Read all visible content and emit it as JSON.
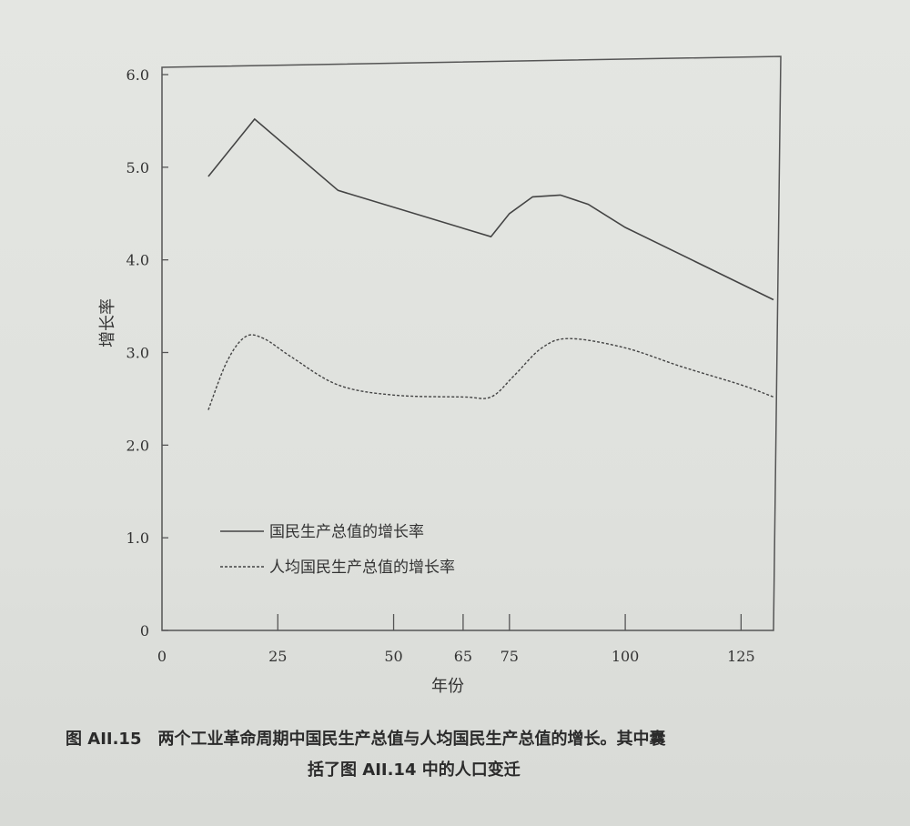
{
  "chart_data": {
    "type": "line",
    "ylabel": "增长率",
    "xlabel": "年份",
    "xlim": [
      0,
      132
    ],
    "ylim": [
      0,
      6.0
    ],
    "x_ticks": [
      0,
      25,
      50,
      65,
      75,
      100,
      125
    ],
    "y_ticks": [
      "0",
      "1.0",
      "2.0",
      "3.0",
      "4.0",
      "5.0",
      "6.0"
    ],
    "legend_position": "lower-left",
    "series": [
      {
        "name": "国民生产总值的增长率",
        "style": "solid",
        "x": [
          10,
          20,
          38,
          71,
          75,
          80,
          86,
          92,
          100,
          132
        ],
        "y": [
          4.9,
          5.52,
          4.75,
          4.25,
          4.5,
          4.68,
          4.7,
          4.6,
          4.35,
          3.57
        ]
      },
      {
        "name": "人均国民生产总值的增长率",
        "style": "dashed",
        "x": [
          10,
          14,
          18,
          22,
          28,
          38,
          50,
          65,
          71,
          76,
          82,
          88,
          100,
          112,
          125,
          132
        ],
        "y": [
          2.38,
          2.9,
          3.17,
          3.15,
          2.95,
          2.65,
          2.54,
          2.52,
          2.52,
          2.75,
          3.05,
          3.15,
          3.05,
          2.85,
          2.65,
          2.52
        ]
      }
    ],
    "grid": false
  },
  "caption": {
    "line1": "图 AII.15　两个工业革命周期中国民生产总值与人均国民生产总值的增长。其中囊",
    "line2": "括了图 AII.14 中的人口变迁"
  }
}
